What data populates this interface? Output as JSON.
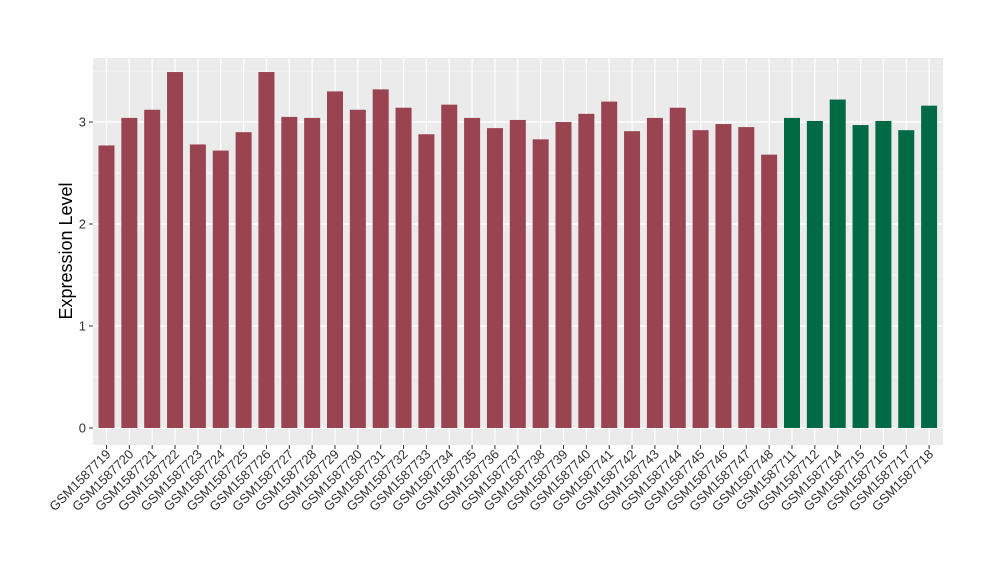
{
  "chart_data": {
    "type": "bar",
    "title": "",
    "xlabel": "",
    "ylabel": "Expression Level",
    "ylim": [
      0,
      3.6
    ],
    "yticks": [
      0,
      1,
      2,
      3
    ],
    "grid": true,
    "legend": "none",
    "colors": {
      "group1": "#9A4452",
      "group2": "#006A45",
      "panel": "#EBEBEB",
      "grid": "#FFFFFF"
    },
    "categories": [
      "GSM1587719",
      "GSM1587720",
      "GSM1587721",
      "GSM1587722",
      "GSM1587723",
      "GSM1587724",
      "GSM1587725",
      "GSM1587726",
      "GSM1587727",
      "GSM1587728",
      "GSM1587729",
      "GSM1587730",
      "GSM1587731",
      "GSM1587732",
      "GSM1587733",
      "GSM1587734",
      "GSM1587735",
      "GSM1587736",
      "GSM1587737",
      "GSM1587738",
      "GSM1587739",
      "GSM1587740",
      "GSM1587741",
      "GSM1587742",
      "GSM1587743",
      "GSM1587744",
      "GSM1587745",
      "GSM1587746",
      "GSM1587747",
      "GSM1587748",
      "GSM1587711",
      "GSM1587712",
      "GSM1587714",
      "GSM1587715",
      "GSM1587716",
      "GSM1587717",
      "GSM1587718"
    ],
    "values": [
      2.77,
      3.04,
      3.12,
      3.49,
      2.78,
      2.72,
      2.9,
      3.49,
      3.05,
      3.04,
      3.3,
      3.12,
      3.32,
      3.14,
      2.88,
      3.17,
      3.04,
      2.94,
      3.02,
      2.83,
      3.0,
      3.08,
      3.2,
      2.91,
      3.04,
      3.14,
      2.92,
      2.98,
      2.95,
      2.68,
      3.04,
      3.01,
      3.22,
      2.97,
      3.01,
      2.92,
      3.16
    ],
    "groups": [
      "group1",
      "group1",
      "group1",
      "group1",
      "group1",
      "group1",
      "group1",
      "group1",
      "group1",
      "group1",
      "group1",
      "group1",
      "group1",
      "group1",
      "group1",
      "group1",
      "group1",
      "group1",
      "group1",
      "group1",
      "group1",
      "group1",
      "group1",
      "group1",
      "group1",
      "group1",
      "group1",
      "group1",
      "group1",
      "group1",
      "group2",
      "group2",
      "group2",
      "group2",
      "group2",
      "group2",
      "group2"
    ]
  }
}
